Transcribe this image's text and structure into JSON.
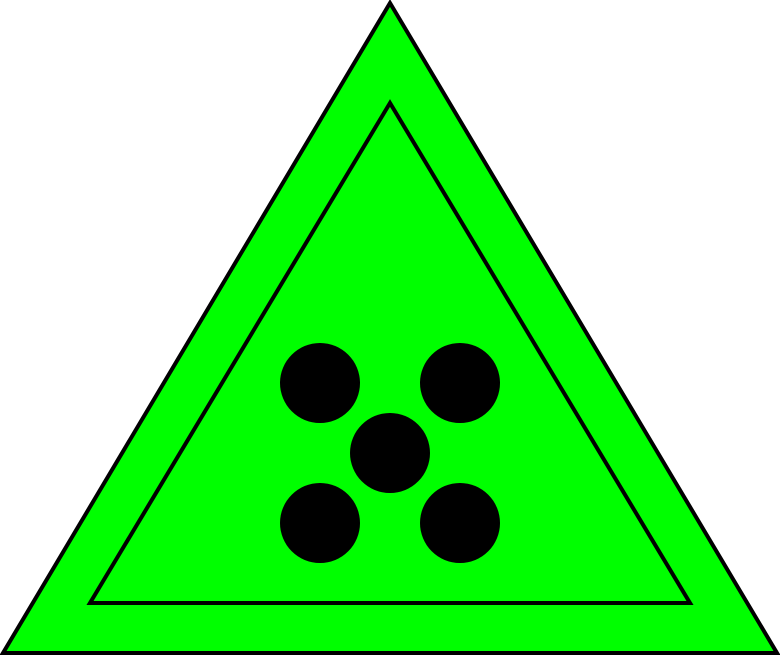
{
  "symbol": {
    "shape": "triangle",
    "fill_color": "#00ff00",
    "outline_color": "#000000",
    "pip_color": "#000000",
    "pip_count": 5,
    "pip_arrangement": "quincunx"
  }
}
